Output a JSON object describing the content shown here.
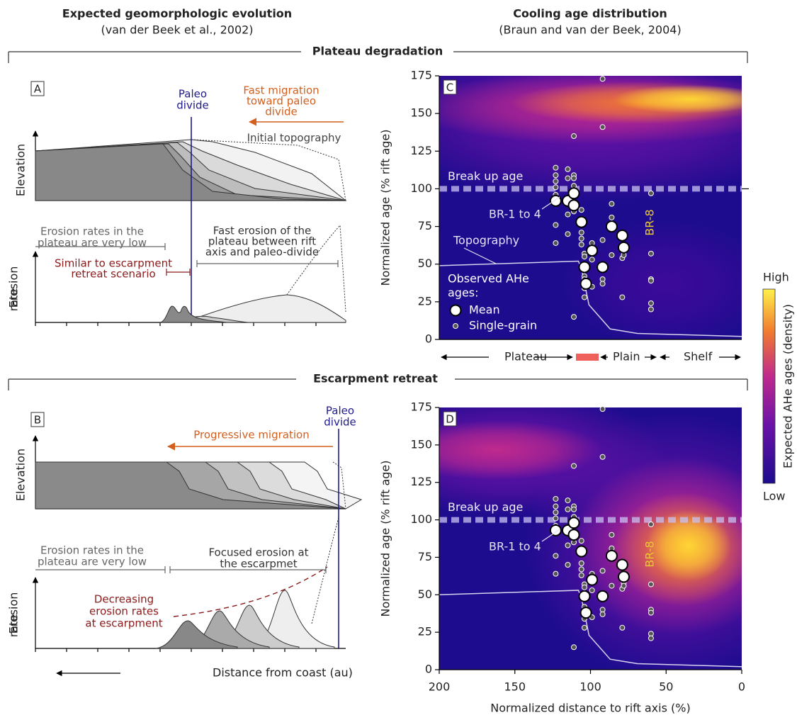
{
  "header": {
    "left_title": "Expected geomorphologic evolution",
    "left_subtitle": "(van der Beek et al., 2002)",
    "right_title": "Cooling age distribution",
    "right_subtitle": "(Braun and van der Beek, 2004)"
  },
  "sections": [
    "Plateau degradation",
    "Escarpment retreat"
  ],
  "panel_a": {
    "label": "A",
    "divide": [
      "Paleo",
      "divide"
    ],
    "migration": [
      "Fast migration",
      "toward paleo",
      "divide"
    ],
    "initial": "Initial topography",
    "ylabel_top": "Elevation",
    "plateau_note": [
      "Erosion rates in the",
      "plateau are very low"
    ],
    "fast_note": [
      "Fast erosion of the",
      "plateau between rift",
      "axis and paleo-divide"
    ],
    "similar_note": [
      "Similar to escarpment",
      "retreat scenario"
    ],
    "ylabel_bottom": [
      "Erosion",
      "rate"
    ]
  },
  "panel_b": {
    "label": "B",
    "divide": [
      "Paleo",
      "divide"
    ],
    "migration": "Progressive migration",
    "ylabel_top": "Elevation",
    "focused_note": [
      "Focused erosion at",
      "the escarpmet"
    ],
    "plateau_note": [
      "Erosion rates in the",
      "plateau are very low"
    ],
    "decreasing_note": [
      "Decreasing",
      "erosion rates",
      "at escarpment"
    ],
    "ylabel_bottom": [
      "Erosion",
      "rate"
    ],
    "xlabel": "Distance from coast (au)"
  },
  "chart_data": [
    {
      "type": "scatter",
      "panel_label": "C",
      "ylabel": "Normalized age (% rift age)",
      "xlim": [
        200,
        0
      ],
      "ylim": [
        0,
        175
      ],
      "yticks": [
        0,
        25,
        50,
        75,
        100,
        125,
        150,
        175
      ],
      "breakup": {
        "value": 100,
        "label": "Break up age"
      },
      "annotations": {
        "group": "BR-1 to 4",
        "single": "BR-8"
      },
      "legend_title": [
        "Observed AHe",
        "ages:"
      ],
      "zones": [
        "Plateau",
        "Plain",
        "Shelf"
      ],
      "series": [
        {
          "name": "Topography",
          "color": "#d4d2ec",
          "kind": "line",
          "x": [
            200,
            108,
            106,
            101,
            87,
            69,
            0
          ],
          "values": [
            49,
            52,
            47,
            23,
            7,
            4,
            2
          ]
        },
        {
          "name": "Single-grain",
          "color": "#555555",
          "kind": "small",
          "x": [
            123,
            123,
            123,
            123,
            123,
            123,
            123,
            115,
            115,
            115,
            115,
            111,
            111,
            111,
            111,
            111,
            111,
            111,
            106,
            106,
            106,
            106,
            104,
            104,
            104,
            104,
            104,
            104,
            99,
            99,
            99,
            92,
            92,
            92,
            92,
            92,
            86,
            86,
            86,
            79,
            79,
            78,
            78,
            60,
            60,
            60,
            60,
            60,
            60
          ],
          "values": [
            114,
            109,
            105,
            101,
            96,
            76,
            64,
            113,
            107,
            83,
            70,
            135,
            109,
            107,
            102,
            96,
            85,
            15,
            86,
            71,
            67,
            63,
            57,
            55,
            42,
            40,
            34,
            28,
            64,
            53,
            35,
            173,
            141,
            66,
            40,
            37,
            90,
            81,
            56,
            54,
            28,
            58,
            56,
            97,
            57,
            40,
            39,
            24,
            20
          ]
        },
        {
          "name": "Mean",
          "color": "#ffffff",
          "kind": "big",
          "x": [
            123,
            115,
            111,
            111,
            106,
            104,
            103,
            99,
            92,
            86,
            79,
            78
          ],
          "values": [
            92,
            92,
            97,
            89,
            78,
            48,
            37,
            59,
            48,
            75,
            69,
            61
          ]
        }
      ]
    },
    {
      "type": "scatter",
      "panel_label": "D",
      "ylabel": "Normalized age (% rift age)",
      "xlabel": "Normalized distance to rift axis (%)",
      "xlim": [
        200,
        0
      ],
      "ylim": [
        0,
        175
      ],
      "xticks": [
        200,
        150,
        100,
        50,
        0
      ],
      "yticks": [
        0,
        25,
        50,
        75,
        100,
        125,
        150,
        175
      ],
      "breakup": {
        "value": 100,
        "label": "Break up age"
      },
      "annotations": {
        "group": "BR-1 to 4",
        "single": "BR-8"
      },
      "series": [
        {
          "name": "Topography",
          "color": "#d4d2ec",
          "kind": "line",
          "x": [
            200,
            108,
            106,
            101,
            87,
            69,
            0
          ],
          "values": [
            50,
            53,
            48,
            23,
            7,
            4,
            2
          ]
        },
        {
          "name": "Single-grain",
          "color": "#555555",
          "kind": "small",
          "x": [
            123,
            123,
            123,
            123,
            123,
            123,
            123,
            115,
            115,
            115,
            115,
            111,
            111,
            111,
            111,
            111,
            111,
            111,
            106,
            106,
            106,
            106,
            104,
            104,
            104,
            104,
            104,
            104,
            99,
            99,
            99,
            92,
            92,
            92,
            92,
            92,
            86,
            86,
            86,
            79,
            79,
            78,
            78,
            60,
            60,
            60,
            60,
            60,
            60
          ],
          "values": [
            114,
            109,
            105,
            101,
            96,
            76,
            64,
            113,
            107,
            83,
            70,
            136,
            109,
            107,
            102,
            96,
            85,
            15,
            86,
            71,
            67,
            63,
            57,
            55,
            42,
            40,
            34,
            28,
            64,
            53,
            35,
            174,
            142,
            66,
            40,
            37,
            90,
            81,
            56,
            54,
            28,
            58,
            56,
            97,
            57,
            40,
            38,
            24,
            21
          ]
        },
        {
          "name": "Mean",
          "color": "#ffffff",
          "kind": "big",
          "x": [
            123,
            115,
            111,
            111,
            106,
            104,
            103,
            99,
            92,
            86,
            79,
            78
          ],
          "values": [
            93,
            93,
            98,
            90,
            79,
            49,
            38,
            60,
            49,
            76,
            70,
            62
          ]
        }
      ]
    }
  ],
  "colorbar": {
    "high": "High",
    "low": "Low",
    "label": "Expected AHe ages (density)"
  }
}
